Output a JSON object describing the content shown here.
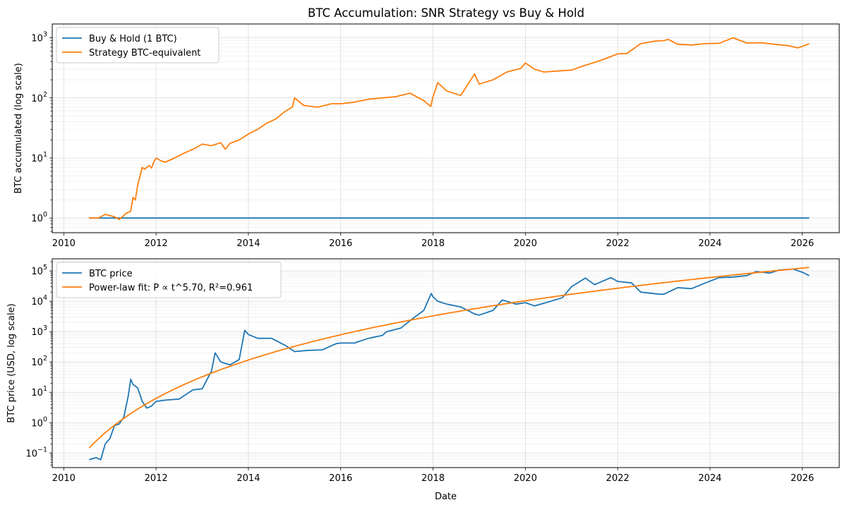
{
  "figure_title": "BTC Accumulation: SNR Strategy vs Buy & Hold",
  "chart_data": [
    {
      "type": "line",
      "title": "BTC Accumulation: SNR Strategy vs Buy & Hold",
      "xlabel": "",
      "ylabel": "BTC accumulated (log scale)",
      "yscale": "log",
      "xlim": [
        2009.75,
        2026.8
      ],
      "ylim": [
        0.57,
        1700
      ],
      "x_ticks": [
        "2010",
        "2012",
        "2014",
        "2016",
        "2018",
        "2020",
        "2022",
        "2024",
        "2026"
      ],
      "y_ticks": [
        {
          "base": "10",
          "exp": "0",
          "value": 1
        },
        {
          "base": "10",
          "exp": "1",
          "value": 10
        },
        {
          "base": "10",
          "exp": "2",
          "value": 100
        },
        {
          "base": "10",
          "exp": "3",
          "value": 1000
        }
      ],
      "grid": true,
      "legend_position": "upper-left",
      "series": [
        {
          "name": "Buy & Hold (1 BTC)",
          "color": "#1f77b4",
          "x": [
            2010.55,
            2026.15
          ],
          "y": [
            1,
            1
          ]
        },
        {
          "name": "Strategy BTC-equivalent",
          "color": "#ff7f0e",
          "x": [
            2010.55,
            2010.75,
            2010.9,
            2011.0,
            2011.1,
            2011.2,
            2011.3,
            2011.35,
            2011.45,
            2011.5,
            2011.55,
            2011.6,
            2011.7,
            2011.75,
            2011.85,
            2011.9,
            2011.95,
            2012.0,
            2012.1,
            2012.2,
            2012.4,
            2012.6,
            2012.8,
            2013.0,
            2013.2,
            2013.4,
            2013.5,
            2013.6,
            2013.8,
            2014.0,
            2014.2,
            2014.4,
            2014.6,
            2014.8,
            2014.95,
            2015.0,
            2015.2,
            2015.5,
            2015.8,
            2016.0,
            2016.3,
            2016.6,
            2016.9,
            2017.2,
            2017.5,
            2017.8,
            2017.95,
            2018.0,
            2018.05,
            2018.1,
            2018.3,
            2018.6,
            2018.9,
            2019.0,
            2019.3,
            2019.6,
            2019.9,
            2020.0,
            2020.2,
            2020.4,
            2020.7,
            2021.0,
            2021.3,
            2021.5,
            2021.7,
            2022.0,
            2022.2,
            2022.5,
            2022.8,
            2023.0,
            2023.1,
            2023.3,
            2023.6,
            2023.9,
            2024.2,
            2024.5,
            2024.8,
            2025.1,
            2025.4,
            2025.7,
            2025.9,
            2026.0,
            2026.15
          ],
          "y": [
            1.0,
            1.0,
            1.15,
            1.1,
            1.05,
            0.95,
            1.1,
            1.2,
            1.3,
            2.2,
            2.0,
            3.5,
            7.0,
            6.5,
            7.5,
            6.8,
            8.5,
            10.0,
            9.0,
            8.5,
            10.0,
            12.0,
            14.0,
            17.0,
            16.0,
            18.0,
            14.0,
            17.5,
            20.0,
            25.0,
            30.0,
            38.0,
            45.0,
            60.0,
            70.0,
            100.0,
            75.0,
            70.0,
            80.0,
            80.0,
            85.0,
            95.0,
            100.0,
            105.0,
            120.0,
            90.0,
            72.0,
            105.0,
            135.0,
            180.0,
            130.0,
            110.0,
            250.0,
            170.0,
            200.0,
            270.0,
            310.0,
            380.0,
            300.0,
            270.0,
            280.0,
            290.0,
            350.0,
            390.0,
            440.0,
            540.0,
            550.0,
            800.0,
            880.0,
            900.0,
            940.0,
            780.0,
            760.0,
            800.0,
            810.0,
            1000.0,
            820.0,
            830.0,
            780.0,
            740.0,
            680.0,
            720.0,
            800.0
          ]
        }
      ]
    },
    {
      "type": "line",
      "title": "",
      "xlabel": "Date",
      "ylabel": "BTC price (USD, log scale)",
      "yscale": "log",
      "xlim": [
        2009.75,
        2026.8
      ],
      "ylim": [
        0.033,
        250000
      ],
      "x_ticks": [
        "2010",
        "2012",
        "2014",
        "2016",
        "2018",
        "2020",
        "2022",
        "2024",
        "2026"
      ],
      "y_ticks": [
        {
          "base": "10",
          "exp": "−1",
          "value": 0.1
        },
        {
          "base": "10",
          "exp": "0",
          "value": 1
        },
        {
          "base": "10",
          "exp": "1",
          "value": 10
        },
        {
          "base": "10",
          "exp": "2",
          "value": 100
        },
        {
          "base": "10",
          "exp": "3",
          "value": 1000
        },
        {
          "base": "10",
          "exp": "4",
          "value": 10000
        },
        {
          "base": "10",
          "exp": "5",
          "value": 100000
        }
      ],
      "grid": true,
      "legend_position": "upper-left",
      "series": [
        {
          "name": "BTC price",
          "color": "#1f77b4",
          "x": [
            2010.55,
            2010.7,
            2010.8,
            2010.9,
            2011.0,
            2011.1,
            2011.2,
            2011.3,
            2011.4,
            2011.45,
            2011.5,
            2011.6,
            2011.7,
            2011.8,
            2011.9,
            2012.0,
            2012.2,
            2012.5,
            2012.8,
            2013.0,
            2013.2,
            2013.28,
            2013.4,
            2013.6,
            2013.8,
            2013.92,
            2014.0,
            2014.2,
            2014.5,
            2014.8,
            2015.0,
            2015.3,
            2015.6,
            2015.9,
            2016.0,
            2016.3,
            2016.6,
            2016.9,
            2017.0,
            2017.3,
            2017.6,
            2017.8,
            2017.96,
            2018.0,
            2018.1,
            2018.3,
            2018.6,
            2018.9,
            2019.0,
            2019.3,
            2019.5,
            2019.8,
            2020.0,
            2020.2,
            2020.5,
            2020.8,
            2021.0,
            2021.3,
            2021.5,
            2021.85,
            2022.0,
            2022.3,
            2022.5,
            2022.9,
            2023.0,
            2023.3,
            2023.6,
            2023.9,
            2024.2,
            2024.5,
            2024.8,
            2025.0,
            2025.3,
            2025.5,
            2025.8,
            2026.0,
            2026.15
          ],
          "y": [
            0.06,
            0.07,
            0.06,
            0.2,
            0.3,
            0.8,
            0.9,
            1.5,
            8.0,
            27.0,
            18.0,
            14.0,
            5.0,
            3.0,
            3.5,
            5.0,
            5.5,
            6.0,
            12.0,
            13.0,
            50.0,
            200.0,
            100.0,
            80.0,
            120.0,
            1100.0,
            800.0,
            600.0,
            600.0,
            350.0,
            220.0,
            240.0,
            250.0,
            400.0,
            420.0,
            420.0,
            600.0,
            750.0,
            1000.0,
            1300.0,
            3000.0,
            5000.0,
            18000.0,
            14000.0,
            10000.0,
            8000.0,
            6500.0,
            3800.0,
            3500.0,
            5000.0,
            11000.0,
            8000.0,
            9000.0,
            7000.0,
            9500.0,
            13000.0,
            30000.0,
            58000.0,
            35000.0,
            60000.0,
            45000.0,
            40000.0,
            20000.0,
            17000.0,
            17000.0,
            28000.0,
            26000.0,
            40000.0,
            60000.0,
            63000.0,
            70000.0,
            95000.0,
            85000.0,
            107000.0,
            115000.0,
            90000.0,
            70000.0
          ]
        },
        {
          "name": "Power-law fit: P ∝ t^5.70, R²=0.961",
          "color": "#ff7f0e",
          "fit": {
            "exponent": 5.7,
            "x_origin": 2009.0,
            "x_start": 2010.55,
            "x_end": 2026.15,
            "anchor_x": 2026.15,
            "anchor_y": 130000
          }
        }
      ]
    }
  ]
}
